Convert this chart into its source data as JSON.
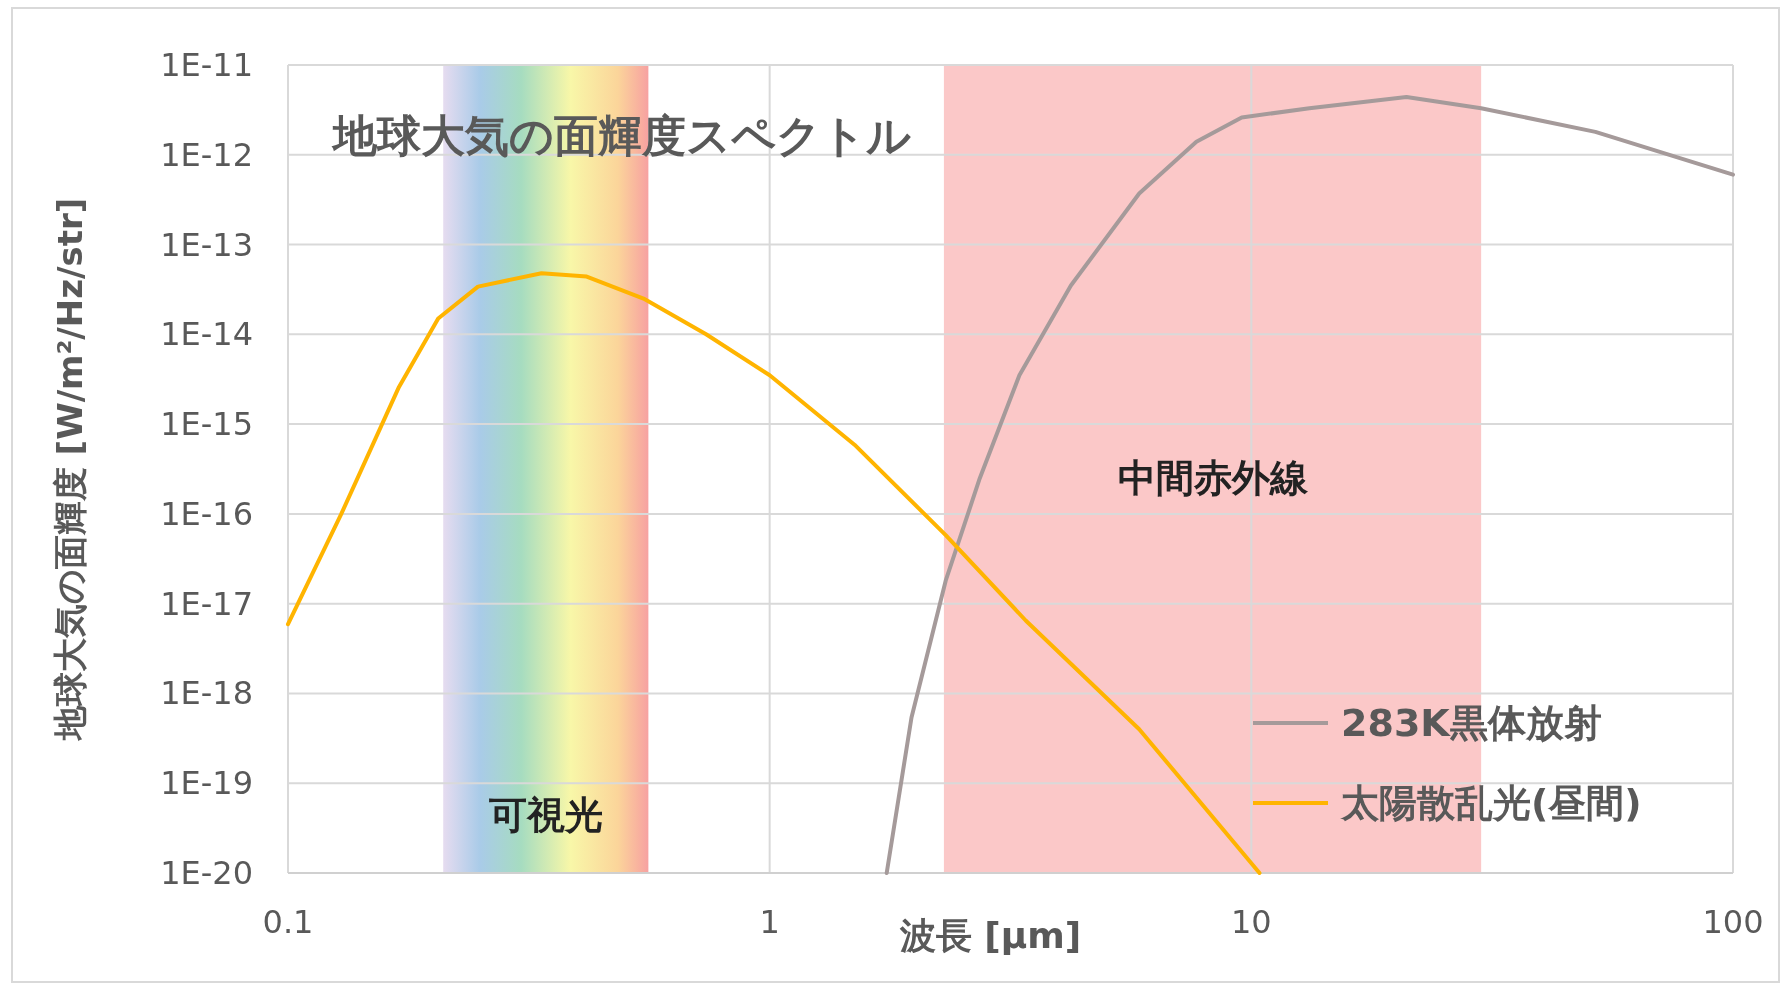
{
  "chart_data": {
    "type": "line",
    "title": "地球大気の面輝度スペクトル",
    "xlabel": "波長 [µm]",
    "ylabel": "地球大気の面輝度 [W/m²/Hz/str]",
    "log": "xy",
    "grid": true,
    "legend": "bottom right",
    "marker": "none",
    "xlim": [
      0.1,
      100
    ],
    "xticks": [
      0.1,
      1,
      10,
      100
    ],
    "ylim": [
      1e-20,
      1e-11
    ],
    "yticks": [
      {
        "value": 1e-20,
        "label": "1E-20"
      },
      {
        "value": 1e-19,
        "label": "1E-19"
      },
      {
        "value": 1e-18,
        "label": "1E-18"
      },
      {
        "value": 1e-17,
        "label": "1E-17"
      },
      {
        "value": 1e-16,
        "label": "1E-16"
      },
      {
        "value": 1e-15,
        "label": "1E-15"
      },
      {
        "value": 1e-14,
        "label": "1E-14"
      },
      {
        "value": 1e-13,
        "label": "1E-13"
      },
      {
        "value": 1e-12,
        "label": "1E-12"
      },
      {
        "value": 1e-11,
        "label": "1E-11"
      }
    ],
    "bands": [
      {
        "axis": "x",
        "from": 0.21,
        "to": 0.56,
        "label": "可視光",
        "color": "#d8efb8"
      },
      {
        "axis": "x",
        "from": 2.3,
        "to": 30,
        "label": "中間赤外線",
        "color": "#fbc8c8"
      }
    ],
    "series": [
      {
        "name": "283K黒体放射",
        "color": "#a59a9a",
        "x": [
          1.75,
          1.97,
          2.32,
          2.73,
          3.3,
          4.22,
          5.85,
          7.69,
          9.55,
          13.2,
          21,
          30,
          51.8,
          100
        ],
        "values": [
          1e-20,
          5.4e-19,
          1.8e-17,
          2.5e-16,
          3.5e-15,
          3.5e-14,
          3.7e-13,
          1.4e-12,
          2.6e-12,
          3.3e-12,
          4.4e-12,
          3.3e-12,
          1.8e-12,
          6e-13
        ]
      },
      {
        "name": "太陽散乱光(昼間)",
        "color": "#ffb400",
        "x": [
          0.1,
          0.129,
          0.17,
          0.205,
          0.248,
          0.336,
          0.417,
          0.547,
          0.738,
          1.0,
          1.5,
          2.32,
          3.4,
          5.85,
          10.4
        ],
        "values": [
          5.9e-18,
          1e-16,
          2.6e-15,
          1.5e-14,
          3.4e-14,
          4.8e-14,
          4.4e-14,
          2.5e-14,
          1e-14,
          3.5e-15,
          5.9e-16,
          5.8e-17,
          6.5e-18,
          4e-19,
          1e-20
        ]
      }
    ]
  }
}
